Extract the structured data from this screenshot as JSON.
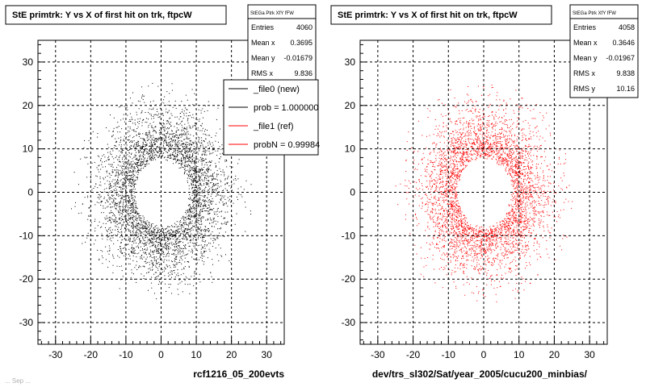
{
  "footer_stamp": "... Sep  ...",
  "chart_data": [
    {
      "type": "scatter",
      "title": "StE primtrk: Y vs X of first hit on trk, ftpcW",
      "xlim": [
        -35,
        35
      ],
      "ylim": [
        -35,
        35
      ],
      "xticks": [
        -30,
        -20,
        -10,
        0,
        10,
        20,
        30
      ],
      "yticks": [
        -30,
        -20,
        -10,
        0,
        10,
        20,
        30
      ],
      "grid": true,
      "marker_color": "#000000",
      "xlabel": "rcf1216_05_200evts",
      "stats": {
        "name": "StEGa Ptrk XfY fFW",
        "rows": [
          {
            "label": "Entries",
            "value": "4060"
          },
          {
            "label": "Mean x",
            "value": "0.3695"
          },
          {
            "label": "Mean y",
            "value": "-0.01679"
          },
          {
            "label": "RMS x",
            "value": "9.836"
          }
        ]
      },
      "legend": {
        "placement": "top-right",
        "entries": [
          {
            "label": "_file0 (new)",
            "color": "#000000"
          },
          {
            "label": "prob = 1.000000",
            "color": "#000000"
          },
          {
            "label": "_file1 (ref)",
            "color": "#ff0000"
          },
          {
            "label": "probN = 0.99984",
            "color": "#ff0000"
          }
        ]
      },
      "distribution": {
        "entries": 4060,
        "mean_x": 0.3695,
        "mean_y": -0.01679,
        "rms_x": 9.836,
        "hole_radius": 8,
        "outer_radius": 22
      }
    },
    {
      "type": "scatter",
      "title": "StE primtrk: Y vs X of first hit on trk, ftpcW",
      "xlim": [
        -35,
        35
      ],
      "ylim": [
        -35,
        35
      ],
      "xticks": [
        -30,
        -20,
        -10,
        0,
        10,
        20,
        30
      ],
      "yticks": [
        -30,
        -20,
        -10,
        0,
        10,
        20,
        30
      ],
      "grid": true,
      "marker_color": "#ff0000",
      "xlabel": "dev/trs_sl302/Sat/year_2005/cucu200_minbias/",
      "stats": {
        "name": "StEGa Ptrk XfY fFW",
        "rows": [
          {
            "label": "Entries",
            "value": "4058"
          },
          {
            "label": "Mean x",
            "value": "0.3646"
          },
          {
            "label": "Mean y",
            "value": "-0.01967"
          },
          {
            "label": "RMS x",
            "value": "9.838"
          },
          {
            "label": "RMS y",
            "value": "10.16"
          }
        ]
      },
      "distribution": {
        "entries": 4058,
        "mean_x": 0.3646,
        "mean_y": -0.01967,
        "rms_x": 9.838,
        "rms_y": 10.16,
        "hole_radius": 8,
        "outer_radius": 22
      }
    }
  ]
}
